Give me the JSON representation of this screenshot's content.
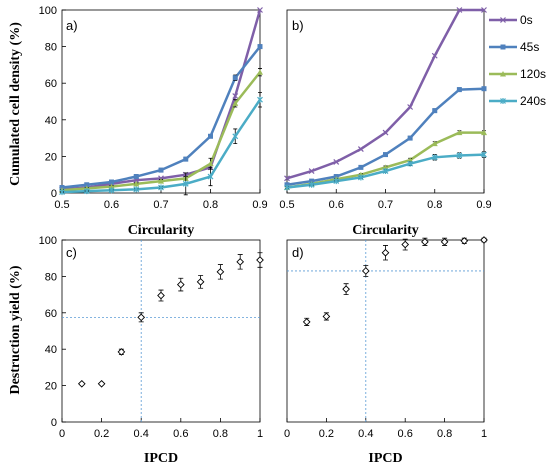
{
  "chart_data": [
    {
      "id": "a",
      "type": "line",
      "panel_label": "a)",
      "xlabel": "Circularity",
      "ylabel": "Cumulated cell density (%)",
      "x": [
        0.5,
        0.55,
        0.6,
        0.65,
        0.7,
        0.75,
        0.8,
        0.85,
        0.9
      ],
      "xticks": [
        "0.5",
        "0.6",
        "0.7",
        "0.8",
        "0.9"
      ],
      "yticks": [
        "0",
        "20",
        "40",
        "60",
        "80",
        "100"
      ],
      "xlim": [
        0.5,
        0.9
      ],
      "ylim": [
        0,
        100
      ],
      "grid": false,
      "series": [
        {
          "name": "0s",
          "color": "#7F5FA8",
          "values": [
            2,
            3,
            5,
            7,
            8,
            10,
            14,
            53,
            100
          ],
          "err": [
            0,
            0,
            0,
            0,
            0,
            0,
            0,
            0,
            0
          ]
        },
        {
          "name": "45s",
          "color": "#4F81BD",
          "values": [
            3,
            4.5,
            6,
            9,
            12.5,
            18.5,
            31,
            63,
            80
          ],
          "err": [
            0.8,
            0.8,
            1,
            1,
            1,
            1,
            1,
            1.5,
            1
          ]
        },
        {
          "name": "120s",
          "color": "#9BBB59",
          "values": [
            1.5,
            2.5,
            3.5,
            5,
            6.5,
            8,
            16,
            49,
            66
          ],
          "err": [
            0.5,
            0.5,
            0.5,
            0.5,
            0.8,
            1,
            3,
            2,
            2
          ]
        },
        {
          "name": "240s",
          "color": "#4BACC6",
          "values": [
            0.5,
            1,
            1.5,
            2,
            3,
            5,
            9,
            31,
            51
          ],
          "err": [
            0.3,
            0.3,
            0.5,
            0.5,
            0.5,
            6,
            5,
            4,
            4
          ]
        }
      ]
    },
    {
      "id": "b",
      "type": "line",
      "panel_label": "b)",
      "xlabel": "Circularity",
      "ylabel": "",
      "x": [
        0.5,
        0.55,
        0.6,
        0.65,
        0.7,
        0.75,
        0.8,
        0.85,
        0.9
      ],
      "xticks": [
        "0.5",
        "0.6",
        "0.7",
        "0.8",
        "0.9"
      ],
      "yticks": [],
      "xlim": [
        0.5,
        0.9
      ],
      "ylim": [
        0,
        100
      ],
      "grid": false,
      "legend": "right",
      "series": [
        {
          "name": "0s",
          "color": "#7F5FA8",
          "values": [
            8,
            12,
            17,
            24,
            33,
            47,
            75,
            100,
            100
          ],
          "err": [
            0,
            0,
            0,
            0,
            0,
            0,
            0,
            0,
            0
          ]
        },
        {
          "name": "45s",
          "color": "#4F81BD",
          "values": [
            4.5,
            6.5,
            9,
            14,
            21,
            30,
            45,
            56.5,
            57
          ],
          "err": [
            0.5,
            0.5,
            0.5,
            0.5,
            0.5,
            1,
            1,
            1,
            1
          ]
        },
        {
          "name": "120s",
          "color": "#9BBB59",
          "values": [
            3,
            5,
            7.5,
            10,
            14,
            18,
            27,
            33,
            33
          ],
          "err": [
            0.5,
            0.5,
            0.5,
            0.5,
            0.8,
            1,
            1,
            1,
            1
          ]
        },
        {
          "name": "240s",
          "color": "#4BACC6",
          "values": [
            3,
            4.5,
            6.5,
            8.5,
            12,
            16,
            19.5,
            20.5,
            21
          ],
          "err": [
            0.5,
            0.5,
            0.5,
            0.5,
            0.8,
            1,
            1.5,
            1.5,
            1.5
          ]
        }
      ]
    },
    {
      "id": "c",
      "type": "scatter",
      "panel_label": "c)",
      "xlabel": "IPCD",
      "ylabel": "Destruction yield (%)",
      "x": [
        0.1,
        0.2,
        0.3,
        0.4,
        0.5,
        0.6,
        0.7,
        0.8,
        0.9,
        1.0
      ],
      "values": [
        21,
        21,
        38.5,
        57.5,
        69.5,
        75.5,
        77,
        82.5,
        88,
        89
      ],
      "err": [
        0.5,
        0.5,
        1.5,
        2.5,
        3,
        3.5,
        3.5,
        4,
        4,
        4
      ],
      "xticks": [
        "0",
        "0.2",
        "0.4",
        "0.6",
        "0.8",
        "1"
      ],
      "yticks": [
        "0",
        "20",
        "40",
        "60",
        "80",
        "100"
      ],
      "xlim": [
        0,
        1
      ],
      "ylim": [
        0,
        100
      ],
      "grid": false,
      "ref_x": 0.4,
      "ref_y": 57.5,
      "ref_color": "#5B9BD5"
    },
    {
      "id": "d",
      "type": "scatter",
      "panel_label": "d)",
      "xlabel": "IPCD",
      "ylabel": "",
      "x": [
        0.1,
        0.2,
        0.3,
        0.4,
        0.5,
        0.6,
        0.7,
        0.8,
        0.9,
        1.0
      ],
      "values": [
        55,
        58,
        73,
        83,
        93,
        97.5,
        99,
        99,
        99.5,
        100
      ],
      "err": [
        2,
        2,
        3,
        3,
        4,
        3,
        2,
        2,
        1.5,
        1
      ],
      "xticks": [
        "0",
        "0.2",
        "0.4",
        "0.6",
        "0.8",
        "1"
      ],
      "yticks": [],
      "xlim": [
        0,
        1
      ],
      "ylim": [
        0,
        100
      ],
      "grid": false,
      "ref_x": 0.4,
      "ref_y": 83,
      "ref_color": "#5B9BD5"
    }
  ]
}
